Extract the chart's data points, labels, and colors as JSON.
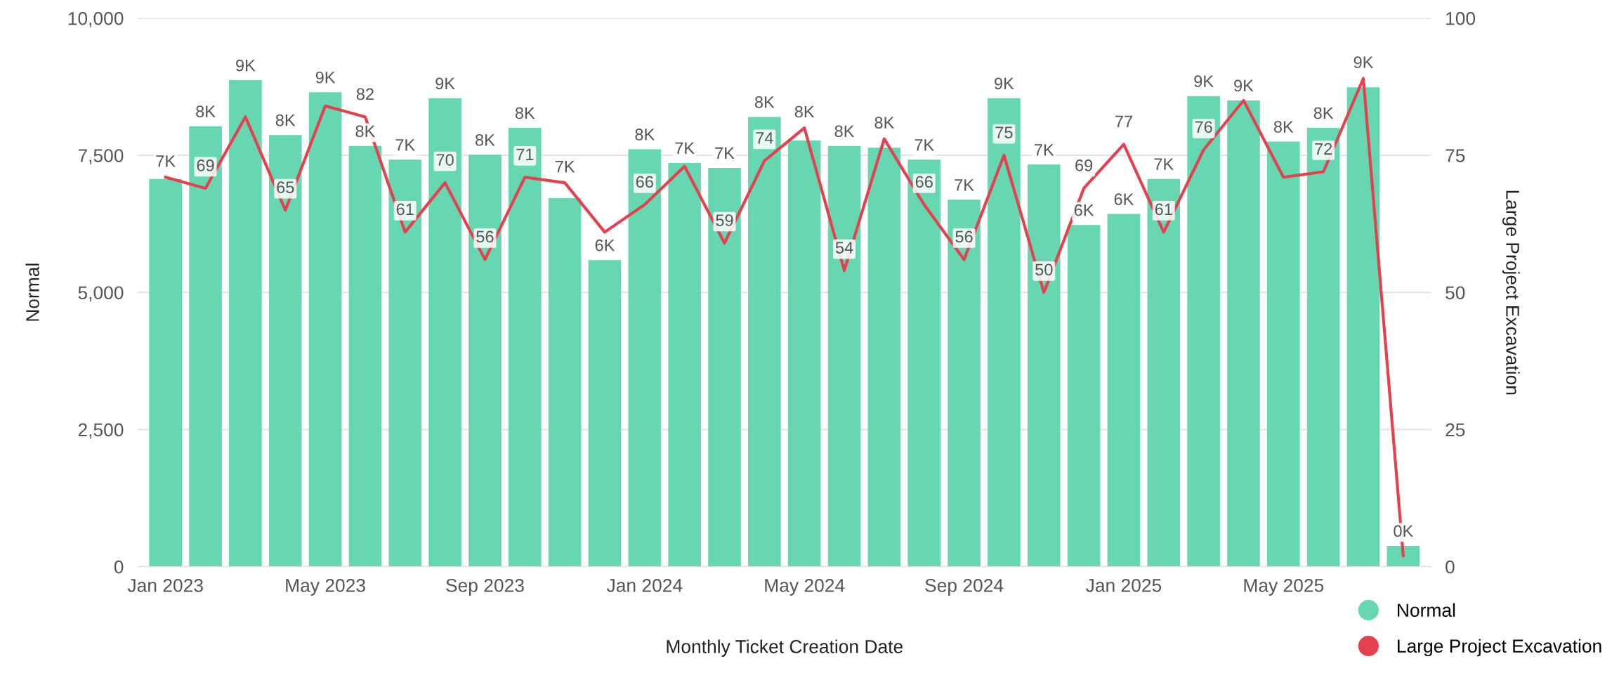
{
  "chart_data": {
    "type": "bar",
    "xlabel": "Monthly Ticket Creation Date",
    "ylabel": "Normal",
    "y2label": "Large Project Excavation",
    "categories": [
      "Jan 2023",
      null,
      null,
      null,
      "May 2023",
      null,
      null,
      null,
      "Sep 2023",
      null,
      null,
      null,
      "Jan 2024",
      null,
      null,
      null,
      "May 2024",
      null,
      null,
      null,
      "Sep 2024",
      null,
      null,
      null,
      "Jan 2025",
      null,
      null,
      null,
      "May 2025",
      null,
      null,
      null
    ],
    "series": [
      {
        "name": "Normal",
        "color": "#66d7b0",
        "values": [
          7070,
          8030,
          8870,
          7870,
          8650,
          7670,
          7420,
          8540,
          7510,
          8000,
          6720,
          5590,
          7610,
          7360,
          7270,
          8200,
          7770,
          7670,
          7640,
          7420,
          6690,
          8540,
          7330,
          6230,
          6430,
          7070,
          8580,
          8500,
          7750,
          8000,
          8740,
          380
        ],
        "value_labels": [
          "7K",
          "8K",
          "9K",
          "8K",
          "9K",
          "8K",
          "7K",
          "9K",
          "8K",
          "8K",
          "7K",
          "6K",
          "8K",
          "7K",
          "7K",
          "8K",
          "8K",
          "8K",
          "8K",
          "7K",
          "7K",
          "9K",
          "7K",
          "6K",
          "6K",
          "7K",
          "9K",
          "9K",
          "8K",
          "8K",
          "9K",
          "0K"
        ]
      },
      {
        "name": "Large Project Excavation",
        "type": "line",
        "axis": "y2",
        "color": "#e5404e",
        "values": [
          71,
          69,
          82,
          65,
          84,
          82,
          61,
          70,
          56,
          71,
          70,
          61,
          66,
          73,
          59,
          74,
          80,
          54,
          78,
          66,
          56,
          75,
          50,
          69,
          77,
          61,
          76,
          85,
          71,
          72,
          89,
          2
        ],
        "value_labels": [
          null,
          "69",
          null,
          "65",
          null,
          "82",
          "61",
          "70",
          "56",
          "71",
          null,
          null,
          "66",
          null,
          "59",
          "74",
          null,
          "54",
          null,
          "66",
          "56",
          "75",
          "50",
          "69",
          "77",
          "61",
          "76",
          null,
          null,
          "72",
          null,
          null
        ]
      }
    ],
    "ylim": [
      0,
      10000
    ],
    "yticks": [
      {
        "value": 0,
        "label": "0"
      },
      {
        "value": 2500,
        "label": "2,500"
      },
      {
        "value": 5000,
        "label": "5,000"
      },
      {
        "value": 7500,
        "label": "7,500"
      },
      {
        "value": 10000,
        "label": "10,000"
      }
    ],
    "y2lim": [
      0,
      100
    ],
    "y2ticks": [
      0,
      25,
      50,
      75,
      100
    ],
    "grid": "y",
    "legend": "bottom right",
    "marker": "none",
    "line_style": "solid"
  }
}
